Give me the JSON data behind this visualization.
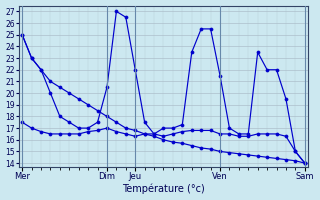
{
  "background_color": "#cce8f0",
  "grid_color": "#aabbc8",
  "line_color": "#0000cc",
  "xlabel": "Température (°c)",
  "ylim_bottom": 13.7,
  "ylim_top": 27.5,
  "yticks": [
    14,
    15,
    16,
    17,
    18,
    19,
    20,
    21,
    22,
    23,
    24,
    25,
    26,
    27
  ],
  "day_labels": [
    "Mer",
    "Dim",
    "Jeu",
    "Ven",
    "Sam"
  ],
  "day_positions": [
    0,
    9,
    12,
    21,
    30
  ],
  "xlim_left": -0.3,
  "xlim_right": 30.3,
  "line_max_x": [
    0,
    1,
    2,
    3,
    4,
    5,
    6,
    7,
    8,
    9,
    10,
    11,
    12,
    13,
    14,
    15,
    16,
    17,
    18,
    19,
    20,
    21,
    22,
    23,
    24,
    25,
    26,
    27,
    28,
    29,
    30
  ],
  "line_max_y": [
    25,
    23,
    22,
    20,
    18,
    17.5,
    17,
    17,
    17.5,
    20.5,
    27,
    26.5,
    22,
    17.5,
    16.5,
    17,
    17,
    17.3,
    23.5,
    25.5,
    25.5,
    21.5,
    17,
    16.5,
    16.5,
    23.5,
    22,
    22,
    19.5,
    15,
    14
  ],
  "line_min_x": [
    0,
    1,
    2,
    3,
    4,
    5,
    6,
    7,
    8,
    9,
    10,
    11,
    12,
    13,
    14,
    15,
    16,
    17,
    18,
    19,
    20,
    21,
    22,
    23,
    24,
    25,
    26,
    27,
    28,
    29,
    30
  ],
  "line_min_y": [
    25,
    23,
    22,
    21,
    20.5,
    20,
    19.5,
    19,
    18.5,
    18,
    17.5,
    17,
    16.8,
    16.5,
    16.3,
    16,
    15.8,
    15.7,
    15.5,
    15.3,
    15.2,
    15.0,
    14.9,
    14.8,
    14.7,
    14.6,
    14.5,
    14.4,
    14.3,
    14.2,
    14
  ],
  "line_mid_x": [
    0,
    1,
    2,
    3,
    4,
    5,
    6,
    7,
    8,
    9,
    10,
    11,
    12,
    13,
    14,
    15,
    16,
    17,
    18,
    19,
    20,
    21,
    22,
    23,
    24,
    25,
    26,
    27,
    28,
    29,
    30
  ],
  "line_mid_y": [
    17.5,
    17,
    16.7,
    16.5,
    16.5,
    16.5,
    16.5,
    16.7,
    16.8,
    17,
    16.7,
    16.5,
    16.3,
    16.5,
    16.5,
    16.3,
    16.5,
    16.7,
    16.8,
    16.8,
    16.8,
    16.5,
    16.5,
    16.3,
    16.3,
    16.5,
    16.5,
    16.5,
    16.3,
    15,
    14
  ]
}
